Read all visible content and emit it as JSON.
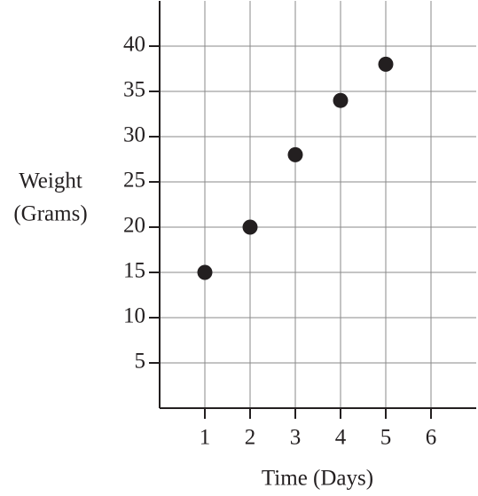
{
  "chart_data": {
    "type": "scatter",
    "xlabel": "Time (Days)",
    "ylabel": [
      "Weight",
      "(Grams)"
    ],
    "x": [
      1,
      2,
      3,
      4,
      5
    ],
    "values": [
      15,
      20,
      28,
      34,
      38
    ],
    "color": "#231f20",
    "xlim": [
      0,
      7
    ],
    "xticks": [
      1,
      2,
      3,
      4,
      5,
      6
    ],
    "ylim": [
      0,
      45
    ],
    "yticks": [
      5,
      10,
      15,
      20,
      25,
      30,
      35,
      40
    ],
    "grid": true
  }
}
